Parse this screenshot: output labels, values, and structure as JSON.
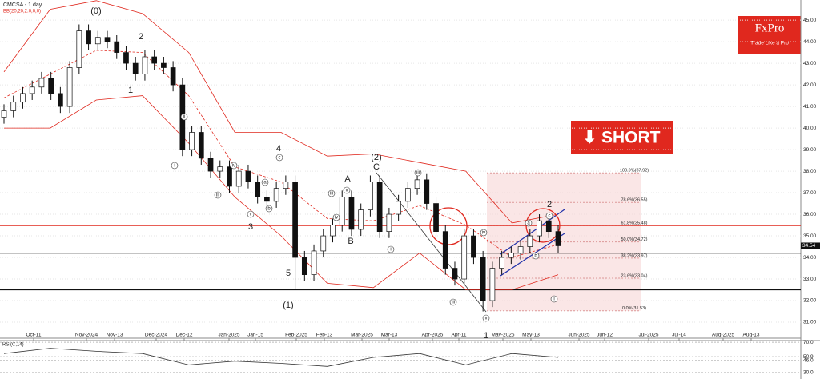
{
  "chart_data": {
    "type": "candlestick",
    "title": "CMCSA - 1 day",
    "indicator_label": "BB(20,20,2.0,0,0)",
    "logo": {
      "brand": "FxPro",
      "tagline": "Trade Like a Pro"
    },
    "signal": "⬇ SHORT",
    "open": [
      40.5,
      40.8,
      41.2,
      41.6,
      41.9,
      42.3,
      41.6,
      41.0,
      42.8,
      44.5,
      43.9,
      44.2,
      44.0,
      43.5,
      43.0,
      42.5,
      43.3,
      43.0,
      42.8,
      42.0,
      39.0,
      39.8,
      38.6,
      38.0,
      38.2,
      37.3,
      38.0,
      37.5,
      36.8,
      36.6,
      37.2,
      37.5,
      34.0,
      33.2,
      34.3,
      35.0,
      35.5,
      36.8,
      35.3,
      36.2,
      37.5,
      35.2,
      36.0,
      36.6,
      37.2,
      37.6,
      36.5,
      35.2,
      33.5,
      33.0,
      35.0,
      34.0,
      32.0,
      33.5,
      34.0,
      34.2,
      34.5,
      35.0,
      35.7,
      35.2
    ],
    "high": [
      41.1,
      41.5,
      41.9,
      42.2,
      42.6,
      42.6,
      41.9,
      43.1,
      44.8,
      44.8,
      44.5,
      44.5,
      44.3,
      43.8,
      43.3,
      43.6,
      43.6,
      43.3,
      43.1,
      42.3,
      40.1,
      40.1,
      38.9,
      38.5,
      38.5,
      38.3,
      38.3,
      37.8,
      37.1,
      37.5,
      37.8,
      37.8,
      34.3,
      34.6,
      35.3,
      35.8,
      37.1,
      37.1,
      36.5,
      37.8,
      37.8,
      36.3,
      36.9,
      37.5,
      37.9,
      37.9,
      36.8,
      35.5,
      33.8,
      35.3,
      35.3,
      34.3,
      33.8,
      34.3,
      34.5,
      34.8,
      35.3,
      36.0,
      36.0,
      35.5
    ],
    "low": [
      40.2,
      40.5,
      40.9,
      41.3,
      41.6,
      41.3,
      40.7,
      40.7,
      42.5,
      43.6,
      43.6,
      43.7,
      43.2,
      42.7,
      42.2,
      42.2,
      42.7,
      42.5,
      41.7,
      38.7,
      38.7,
      38.3,
      37.7,
      37.7,
      37.0,
      37.0,
      37.2,
      36.5,
      36.3,
      36.3,
      36.9,
      32.5,
      32.9,
      32.9,
      34.0,
      34.7,
      35.2,
      35.0,
      35.0,
      35.9,
      34.9,
      34.9,
      35.7,
      36.3,
      36.9,
      36.2,
      34.9,
      33.2,
      32.7,
      32.7,
      33.7,
      31.5,
      31.7,
      33.2,
      33.7,
      33.9,
      34.2,
      34.7,
      34.9,
      34.2
    ],
    "close": [
      40.8,
      41.2,
      41.6,
      41.9,
      42.3,
      41.6,
      41.0,
      42.8,
      44.5,
      43.9,
      44.2,
      44.0,
      43.5,
      43.0,
      42.5,
      43.3,
      43.0,
      42.8,
      42.0,
      39.0,
      39.8,
      38.6,
      38.0,
      38.2,
      37.3,
      38.0,
      37.5,
      36.8,
      36.6,
      37.2,
      37.5,
      34.0,
      33.2,
      34.3,
      35.0,
      35.5,
      36.8,
      35.3,
      36.2,
      37.5,
      35.2,
      36.0,
      36.6,
      37.2,
      37.6,
      36.5,
      35.2,
      33.5,
      33.0,
      35.0,
      34.0,
      32.0,
      33.5,
      34.0,
      34.2,
      34.5,
      35.0,
      35.7,
      35.2,
      34.54
    ],
    "bb_upper": [
      42.6,
      45.5,
      45.9,
      45.3,
      43.5,
      39.8,
      39.8,
      38.7,
      38.8,
      38.4,
      38.0,
      35.6,
      36.0
    ],
    "bb_middle": [
      41.4,
      42.5,
      43.6,
      43.5,
      41.5,
      38.2,
      37.5,
      35.8,
      35.7,
      36.4,
      35.5,
      34.0,
      34.6
    ],
    "bb_lower": [
      40.0,
      40.0,
      41.3,
      41.5,
      39.3,
      36.8,
      35.0,
      32.8,
      32.6,
      34.2,
      32.5,
      32.5,
      33.2
    ],
    "bb_color": "#e0281e",
    "up_color": "#ffffff",
    "down_color": "#111111",
    "ylim": [
      30.26,
      45.93
    ],
    "yticks": [
      {
        "value": 31,
        "label": "31.00"
      },
      {
        "value": 32,
        "label": "32.00"
      },
      {
        "value": 33,
        "label": "33.00"
      },
      {
        "value": 34,
        "label": "34.00"
      },
      {
        "value": 35,
        "label": "35.00"
      },
      {
        "value": 36,
        "label": "36.00"
      },
      {
        "value": 37,
        "label": "37.00"
      },
      {
        "value": 38,
        "label": "38.00"
      },
      {
        "value": 39,
        "label": "39.00"
      },
      {
        "value": 40,
        "label": "40.00"
      },
      {
        "value": 41,
        "label": "41.00"
      },
      {
        "value": 42,
        "label": "42.00"
      },
      {
        "value": 43,
        "label": "43.00"
      },
      {
        "value": 44,
        "label": "44.00"
      },
      {
        "value": 45,
        "label": "45.00"
      }
    ],
    "grid": true,
    "x_labels": [
      "Oct-11",
      "Nov-2024",
      "Nov-13",
      "Dec-2024",
      "Dec-12",
      "Jan-2025",
      "Jan-15",
      "Feb-2025",
      "Feb-13",
      "Mar-2025",
      "Mar-13",
      "Apr-2025",
      "Apr-11",
      "May-2025",
      "May-13",
      "Jun-2025",
      "Jun-12",
      "Jul-2025",
      "Jul-14",
      "Aug-2025",
      "Aug-13"
    ],
    "levels": [
      {
        "value": 35.48,
        "color": "#e0281e"
      },
      {
        "value": 34.2,
        "color": "#111111"
      },
      {
        "value": 32.5,
        "color": "#111111"
      }
    ],
    "fib": [
      {
        "value": 37.92,
        "label": "100.0%(37.92)"
      },
      {
        "value": 36.55,
        "label": "78.6%(36.55)"
      },
      {
        "value": 35.48,
        "label": "61.8%(35.48)"
      },
      {
        "value": 34.72,
        "label": "50.0%(34.72)"
      },
      {
        "value": 33.97,
        "label": "38.2%(33.97)"
      },
      {
        "value": 33.04,
        "label": "23.6%(33.04)"
      },
      {
        "value": 31.53,
        "label": "0.0%(31.53)"
      }
    ],
    "waves": [
      "(0)",
      "2",
      "1",
      "4",
      "3",
      "5",
      "(1)",
      "A",
      "B",
      "(2)",
      "C",
      "1",
      "2"
    ],
    "subwaves": [
      "i",
      "ii",
      "iii",
      "iv",
      "v",
      "a",
      "b",
      "c",
      "iii",
      "iv",
      "v",
      "i",
      "iii",
      "iii",
      "v",
      "iv",
      "i",
      "a",
      "b",
      "c"
    ],
    "rsi": {
      "label": "RSI(C,14)",
      "values": [
        55,
        62,
        58,
        55,
        40,
        45,
        42,
        38,
        50,
        55,
        40,
        55,
        50
      ],
      "ylim": [
        25.6,
        72.2
      ],
      "yticks": [
        {
          "value": 70,
          "label": "70.0"
        },
        {
          "value": 50.9,
          "label": "50.9"
        },
        {
          "value": 46,
          "label": "46.0"
        },
        {
          "value": 30,
          "label": "30.0"
        }
      ]
    }
  }
}
